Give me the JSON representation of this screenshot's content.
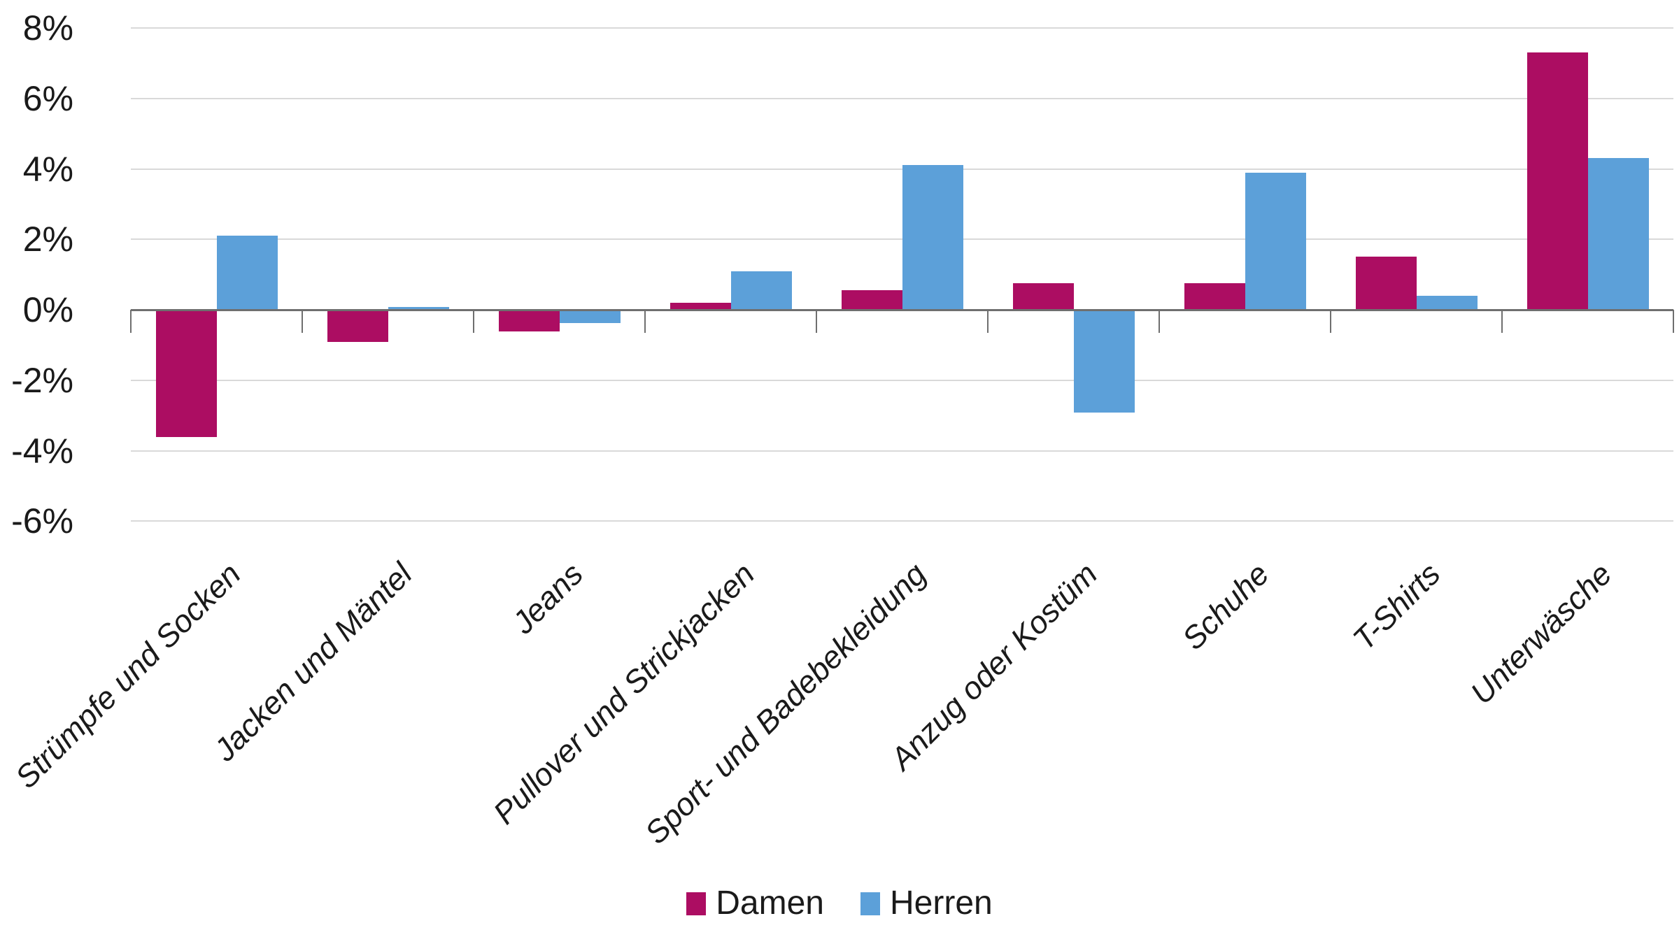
{
  "chart_data": {
    "type": "bar",
    "title": "",
    "categories": [
      "Strümpfe und Socken",
      "Jacken und Mäntel",
      "Jeans",
      "Pullover und Strickjacken",
      "Sport- und Badebekleidung",
      "Anzug oder Kostüm",
      "Schuhe",
      "T-Shirts",
      "Unterwäsche"
    ],
    "series": [
      {
        "name": "Damen",
        "color": "#ac0d62",
        "values": [
          -3.6,
          -0.9,
          -0.6,
          0.2,
          0.55,
          0.75,
          0.75,
          1.5,
          7.3
        ]
      },
      {
        "name": "Herren",
        "color": "#5ca0d9",
        "values": [
          2.1,
          0.07,
          -0.35,
          1.1,
          4.1,
          -2.9,
          3.9,
          0.4,
          4.3
        ]
      }
    ],
    "y_axis": {
      "min": -6,
      "max": 8,
      "step": 2,
      "unit": "%",
      "tick_labels": [
        "8%",
        "6%",
        "4%",
        "2%",
        "0%",
        "-2%",
        "-4%",
        "-6%"
      ]
    },
    "x_axis": {
      "label": "",
      "tick_rotation_deg": -45
    },
    "legend": {
      "position": "bottom",
      "entries": [
        "Damen",
        "Herren"
      ]
    },
    "grid": true,
    "colors": {
      "background": "#ffffff",
      "gridline": "#d9d9d9",
      "axis": "#6f6f6f",
      "text": "#1a1a1a"
    }
  }
}
